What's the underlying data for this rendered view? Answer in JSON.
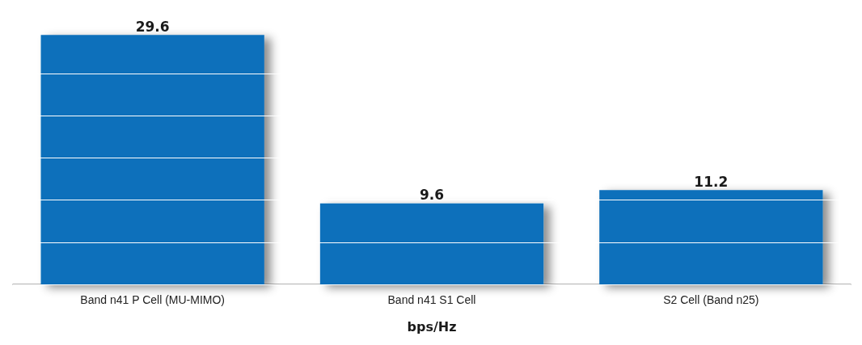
{
  "chart_data": {
    "type": "bar",
    "xlabel": "bps/Hz",
    "categories": [
      "Band n41 P Cell (MU-MIMO)",
      "Band n41 S1 Cell",
      "S2 Cell (Band n25)"
    ],
    "values": [
      29.6,
      9.6,
      11.2
    ],
    "color": "#0a70bb",
    "data_labels": true,
    "yticks": [
      {
        "value": 0,
        "label": null
      },
      {
        "value": 5,
        "label": null
      },
      {
        "value": 10,
        "label": null
      },
      {
        "value": 15,
        "label": null
      },
      {
        "value": 20,
        "label": null
      },
      {
        "value": 25,
        "label": null
      }
    ],
    "grid": "y",
    "tick_labels": "x"
  }
}
